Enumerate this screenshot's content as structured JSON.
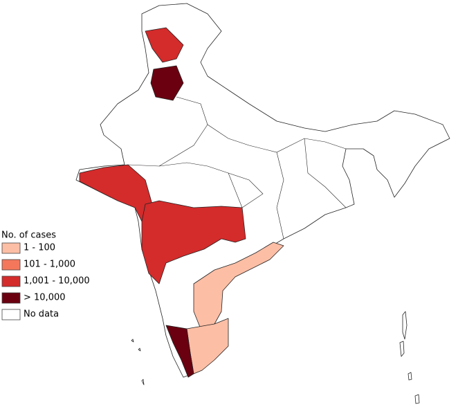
{
  "legend": {
    "title": "No. of cases",
    "items": [
      {
        "label": "1 - 100",
        "color": "#fcbea5"
      },
      {
        "label": "101 - 1,000",
        "color": "#f4775c"
      },
      {
        "label": "1,001 - 10,000",
        "color": "#d42b2b"
      },
      {
        "label": "> 10,000",
        "color": "#6a0010"
      },
      {
        "label": "No data",
        "color": "#ffffff"
      }
    ]
  }
}
